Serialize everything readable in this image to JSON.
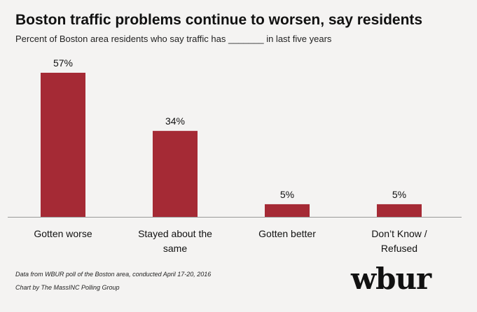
{
  "title": "Boston traffic problems continue to worsen, say residents",
  "subtitle": "Percent of Boston area residents who say traffic has _______ in last five years",
  "chart_data": {
    "type": "bar",
    "categories": [
      [
        "Gotten worse"
      ],
      [
        "Stayed about the",
        "same"
      ],
      [
        "Gotten better"
      ],
      [
        "Don’t Know /",
        "Refused"
      ]
    ],
    "values": [
      57,
      34,
      5,
      5
    ],
    "data_labels": [
      "57%",
      "34%",
      "5%",
      "5%"
    ],
    "ylim": [
      0,
      57
    ],
    "grid": false,
    "bar_color": "#a52a35"
  },
  "footnotes": {
    "source": "Data from WBUR poll of the Boston area, conducted April 17-20, 2016",
    "credit": "Chart by The MassINC Polling Group"
  },
  "logo": "wbur",
  "colors": {
    "background": "#f4f3f2",
    "axis": "#999999"
  }
}
